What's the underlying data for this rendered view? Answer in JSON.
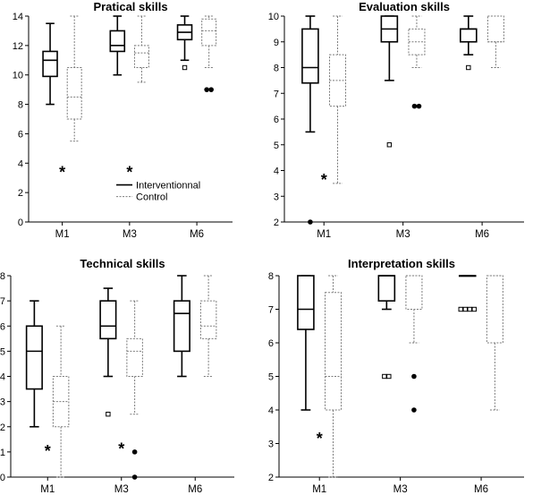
{
  "chart_data": [
    {
      "type": "boxplot",
      "title": "Pratical skills",
      "categories": [
        "M1",
        "M3",
        "M6"
      ],
      "ylim": [
        0,
        14
      ],
      "yticks": [
        0,
        2,
        4,
        6,
        8,
        10,
        12,
        14
      ],
      "legend": {
        "position": "center-bottom"
      },
      "series": [
        {
          "name": "Interventionnal",
          "style": "solid",
          "boxes": [
            {
              "min": 8,
              "q1": 9.9,
              "median": 11,
              "q3": 11.6,
              "max": 13.5
            },
            {
              "min": 10,
              "q1": 11.6,
              "median": 12,
              "q3": 13,
              "max": 14
            },
            {
              "min": 11,
              "q1": 12.4,
              "median": 12.9,
              "q3": 13.4,
              "max": 14
            }
          ],
          "outliers": [
            {
              "category": "M6",
              "value": 10.5,
              "marker": "open-square"
            }
          ]
        },
        {
          "name": "Control",
          "style": "dotted",
          "boxes": [
            {
              "min": 5.5,
              "q1": 7,
              "median": 8.5,
              "q3": 10.5,
              "max": 14
            },
            {
              "min": 9.5,
              "q1": 10.5,
              "median": 11.5,
              "q3": 12,
              "max": 14
            },
            {
              "min": 10.5,
              "q1": 12,
              "median": 13,
              "q3": 13.8,
              "max": 14
            }
          ],
          "outliers": [
            {
              "category": "M6",
              "value": 9,
              "marker": "filled-circle",
              "count": 2
            }
          ]
        }
      ],
      "annotations": [
        {
          "text": "*",
          "category": "M1",
          "value": 3.5
        },
        {
          "text": "*",
          "category": "M3",
          "value": 3.5
        }
      ]
    },
    {
      "type": "boxplot",
      "title": "Evaluation  skills",
      "categories": [
        "M1",
        "M3",
        "M6"
      ],
      "ylim": [
        2,
        10
      ],
      "yticks": [
        2,
        3,
        4,
        5,
        6,
        7,
        8,
        9,
        10
      ],
      "series": [
        {
          "name": "Interventionnal",
          "style": "solid",
          "boxes": [
            {
              "min": 5.5,
              "q1": 7.4,
              "median": 8,
              "q3": 9.5,
              "max": 10
            },
            {
              "min": 7.5,
              "q1": 9,
              "median": 9.5,
              "q3": 10,
              "max": 10
            },
            {
              "min": 8.5,
              "q1": 9,
              "median": 9.5,
              "q3": 9.5,
              "max": 10
            }
          ],
          "outliers": [
            {
              "category": "M1",
              "value": 2,
              "marker": "filled-circle"
            },
            {
              "category": "M3",
              "value": 5,
              "marker": "open-square"
            },
            {
              "category": "M6",
              "value": 8,
              "marker": "open-square"
            }
          ]
        },
        {
          "name": "Control",
          "style": "dotted",
          "boxes": [
            {
              "min": 3.5,
              "q1": 6.5,
              "median": 7.5,
              "q3": 8.5,
              "max": 10
            },
            {
              "min": 8,
              "q1": 8.5,
              "median": 9,
              "q3": 9.5,
              "max": 10
            },
            {
              "min": 8,
              "q1": 9,
              "median": 9,
              "q3": 10,
              "max": 10
            }
          ],
          "outliers": [
            {
              "category": "M3",
              "value": 6.5,
              "marker": "filled-circle",
              "count": 2
            }
          ]
        }
      ],
      "annotations": [
        {
          "text": "*",
          "category": "M1",
          "value": 3.7
        }
      ]
    },
    {
      "type": "boxplot",
      "title": "Technical skills",
      "categories": [
        "M1",
        "M3",
        "M6"
      ],
      "ylim": [
        0,
        8
      ],
      "yticks": [
        0,
        1,
        2,
        3,
        4,
        5,
        6,
        7,
        8
      ],
      "series": [
        {
          "name": "Interventionnal",
          "style": "solid",
          "boxes": [
            {
              "min": 2,
              "q1": 3.5,
              "median": 5,
              "q3": 6,
              "max": 7
            },
            {
              "min": 4,
              "q1": 5.5,
              "median": 6,
              "q3": 7,
              "max": 7.5
            },
            {
              "min": 4,
              "q1": 5,
              "median": 6.5,
              "q3": 7,
              "max": 8
            }
          ],
          "outliers": [
            {
              "category": "M3",
              "value": 2.5,
              "marker": "open-square"
            }
          ]
        },
        {
          "name": "Control",
          "style": "dotted",
          "boxes": [
            {
              "min": 0,
              "q1": 2,
              "median": 3,
              "q3": 4,
              "max": 6
            },
            {
              "min": 2.5,
              "q1": 4,
              "median": 5,
              "q3": 5.5,
              "max": 7
            },
            {
              "min": 4,
              "q1": 5.5,
              "median": 6,
              "q3": 7,
              "max": 8
            }
          ],
          "outliers": [
            {
              "category": "M3",
              "value": 1,
              "marker": "filled-circle"
            },
            {
              "category": "M3",
              "value": 0,
              "marker": "filled-circle"
            }
          ]
        }
      ],
      "annotations": [
        {
          "text": "*",
          "category": "M1",
          "value": 1.1
        },
        {
          "text": "*",
          "category": "M3",
          "value": 1.2
        }
      ]
    },
    {
      "type": "boxplot",
      "title": "Interpretation skills",
      "categories": [
        "M1",
        "M3",
        "M6"
      ],
      "ylim": [
        2,
        8
      ],
      "yticks": [
        2,
        3,
        4,
        5,
        6,
        7,
        8
      ],
      "series": [
        {
          "name": "Interventionnal",
          "style": "solid",
          "boxes": [
            {
              "min": 4,
              "q1": 6.4,
              "median": 7,
              "q3": 8,
              "max": 8
            },
            {
              "min": 7,
              "q1": 7.25,
              "median": 8,
              "q3": 8,
              "max": 8
            },
            {
              "min": 8,
              "q1": 8,
              "median": 8,
              "q3": 8,
              "max": 8
            }
          ],
          "outliers": [
            {
              "category": "M3",
              "value": 5,
              "marker": "open-square",
              "count": 2
            },
            {
              "category": "M6",
              "value": 7,
              "marker": "open-square",
              "count": 4
            }
          ]
        },
        {
          "name": "Control",
          "style": "dotted",
          "boxes": [
            {
              "min": 2,
              "q1": 4,
              "median": 5,
              "q3": 7.5,
              "max": 8
            },
            {
              "min": 6,
              "q1": 7,
              "median": 8,
              "q3": 8,
              "max": 8
            },
            {
              "min": 4,
              "q1": 6,
              "median": 8,
              "q3": 8,
              "max": 8
            }
          ],
          "outliers": [
            {
              "category": "M3",
              "value": 5,
              "marker": "filled-circle"
            },
            {
              "category": "M3",
              "value": 4,
              "marker": "filled-circle"
            }
          ]
        }
      ],
      "annotations": [
        {
          "text": "*",
          "category": "M1",
          "value": 3.2
        }
      ]
    }
  ]
}
